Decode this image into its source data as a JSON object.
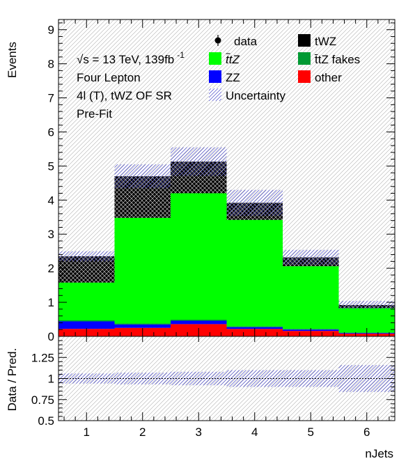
{
  "chart_data": [
    {
      "type": "bar",
      "stacked": true,
      "categories": [
        "1",
        "2",
        "3",
        "4",
        "5",
        "6"
      ],
      "x": [
        1,
        2,
        3,
        4,
        5,
        6
      ],
      "xlim": [
        0.5,
        6.5
      ],
      "ylim": [
        0,
        9.3
      ],
      "yticks": [
        "0",
        "1",
        "2",
        "3",
        "4",
        "5",
        "6",
        "7",
        "8",
        "9"
      ],
      "xlabel": "",
      "ylabel": "Events",
      "series": [
        {
          "name": "other",
          "color": "#ff0000",
          "values": [
            0.22,
            0.25,
            0.36,
            0.22,
            0.16,
            0.08
          ]
        },
        {
          "name": "ZZ",
          "color": "#0000ff",
          "values": [
            0.22,
            0.1,
            0.1,
            0.05,
            0.04,
            0.02
          ]
        },
        {
          "name": "t̄tZ fakes",
          "color": "#009933",
          "values": [
            0.03,
            0.03,
            0.03,
            0.03,
            0.02,
            0.01
          ]
        },
        {
          "name": "ttZ",
          "color": "#00ff00",
          "values": [
            1.11,
            3.1,
            3.71,
            3.12,
            1.84,
            0.72
          ]
        },
        {
          "name": "tWZ",
          "color": "#000000",
          "values": [
            0.77,
            1.22,
            0.93,
            0.5,
            0.26,
            0.09
          ]
        }
      ],
      "uncertainty": [
        0.15,
        0.35,
        0.42,
        0.38,
        0.22,
        0.12
      ],
      "info": [
        "√s = 13 TeV, 139fb",
        "Four Lepton",
        "4l (T), tWZ OF SR",
        "Pre-Fit"
      ],
      "info_superscript": "-1",
      "legend": {
        "entries": [
          {
            "label": "data",
            "kind": "marker"
          },
          {
            "label": "tWZ",
            "kind": "fill",
            "color": "#000000"
          },
          {
            "label": "ttZ",
            "kind": "fill",
            "color": "#00ff00",
            "math": true
          },
          {
            "label": "t̄tZ fakes",
            "kind": "fill",
            "color": "#009933",
            "math": true,
            "suffix": " fakes"
          },
          {
            "label": "ZZ",
            "kind": "fill",
            "color": "#0000ff"
          },
          {
            "label": "other",
            "kind": "fill",
            "color": "#ff0000"
          },
          {
            "label": "Uncertainty",
            "kind": "hatch"
          }
        ]
      },
      "grid": false
    },
    {
      "type": "line",
      "xlabel": "nJets",
      "ylabel": "Data / Pred.",
      "xlim": [
        0.5,
        6.5
      ],
      "ylim": [
        0.5,
        1.5
      ],
      "yticks": [
        "0.5",
        "0.75",
        "1",
        "1.25"
      ],
      "reference_line": 1,
      "uncertainty": [
        0.06,
        0.07,
        0.08,
        0.1,
        0.1,
        0.16
      ]
    }
  ]
}
